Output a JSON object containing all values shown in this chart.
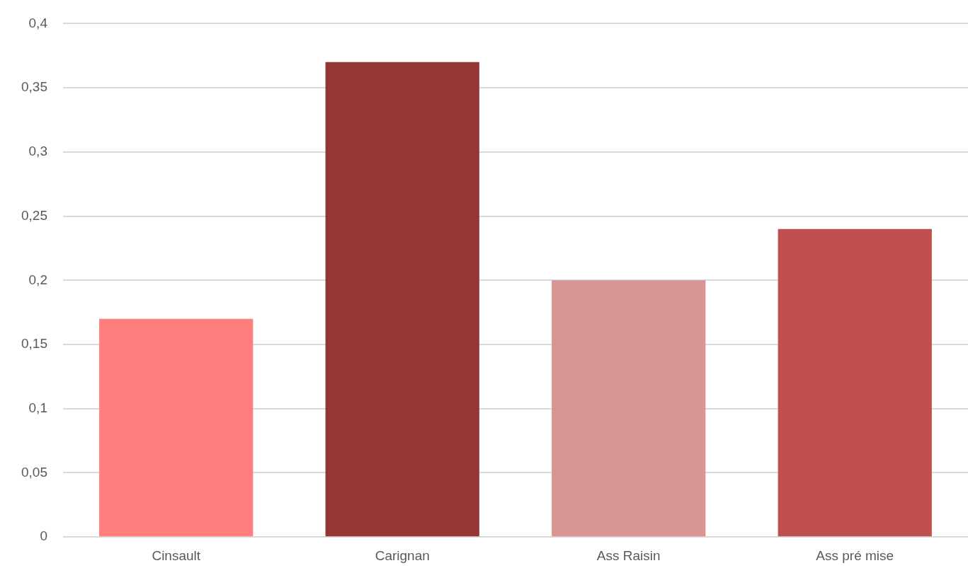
{
  "chart_data": {
    "type": "bar",
    "categories": [
      "Cinsault",
      "Carignan",
      "Ass Raisin",
      "Ass pré mise"
    ],
    "values": [
      0.17,
      0.37,
      0.2,
      0.24
    ],
    "colors": [
      "#ff7f7f",
      "#943634",
      "#d99594",
      "#c0504d"
    ],
    "ylim": [
      0,
      0.4
    ],
    "yticks": [
      0,
      {
        "value": 0.05,
        "label": "0,05"
      },
      {
        "value": 0.1,
        "label": "0,1"
      },
      {
        "value": 0.15,
        "label": "0,15"
      },
      {
        "value": 0.2,
        "label": "0,2"
      },
      {
        "value": 0.25,
        "label": "0,25"
      },
      {
        "value": 0.3,
        "label": "0,3"
      },
      {
        "value": 0.35,
        "label": "0,35"
      },
      {
        "value": 0.4,
        "label": "0,4"
      }
    ],
    "grid": "y"
  }
}
